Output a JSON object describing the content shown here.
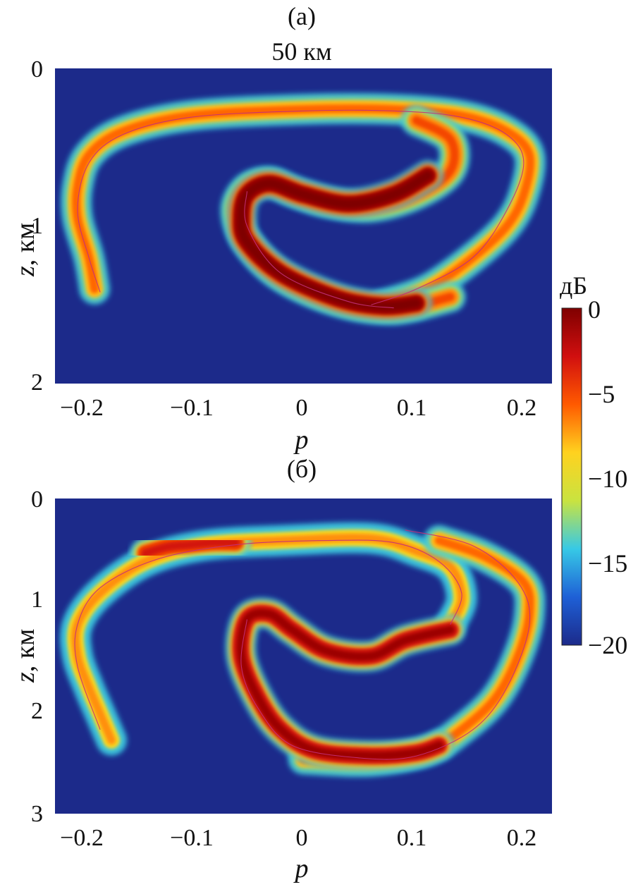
{
  "chart_data": [
    {
      "type": "heatmap",
      "panel_label": "(a)",
      "title": "50 км",
      "xlabel": "p",
      "ylabel_var": "z",
      "ylabel_unit": ", км",
      "xlim": [
        -0.22,
        0.22
      ],
      "ylim": [
        0,
        2
      ],
      "y_reversed": true,
      "xticks": [
        "−0.2",
        "−0.1",
        "0",
        "0.1",
        "0.2"
      ],
      "yticks": [
        "0",
        "1",
        "2"
      ],
      "background_color": "#1c2a8a",
      "series": [
        {
          "level_db": -8,
          "points": [
            [
              -0.185,
              1.4
            ],
            [
              -0.19,
              1.2
            ],
            [
              -0.2,
              0.95
            ],
            [
              -0.2,
              0.75
            ],
            [
              -0.19,
              0.55
            ],
            [
              -0.16,
              0.4
            ],
            [
              -0.1,
              0.3
            ],
            [
              0.0,
              0.26
            ],
            [
              0.08,
              0.26
            ],
            [
              0.14,
              0.3
            ],
            [
              0.18,
              0.4
            ],
            [
              0.2,
              0.55
            ],
            [
              0.195,
              0.8
            ],
            [
              0.18,
              1.0
            ],
            [
              0.15,
              1.2
            ],
            [
              0.11,
              1.4
            ],
            [
              0.07,
              1.5
            ]
          ]
        },
        {
          "level_db": -7,
          "points": [
            [
              0.1,
              0.33
            ],
            [
              0.13,
              0.45
            ],
            [
              0.13,
              0.65
            ],
            [
              0.1,
              0.8
            ],
            [
              0.06,
              0.88
            ],
            [
              0.02,
              0.85
            ],
            [
              -0.01,
              0.78
            ],
            [
              -0.03,
              0.72
            ],
            [
              -0.05,
              0.76
            ],
            [
              -0.06,
              0.9
            ],
            [
              -0.05,
              1.1
            ],
            [
              -0.02,
              1.32
            ],
            [
              0.03,
              1.48
            ],
            [
              0.08,
              1.53
            ],
            [
              0.13,
              1.45
            ]
          ]
        },
        {
          "level_db": -1,
          "points": [
            [
              0.11,
              0.68
            ],
            [
              0.08,
              0.8
            ],
            [
              0.04,
              0.86
            ],
            [
              0.0,
              0.8
            ],
            [
              -0.03,
              0.73
            ],
            [
              -0.05,
              0.8
            ],
            [
              -0.055,
              0.95
            ],
            [
              -0.05,
              1.1
            ],
            [
              -0.02,
              1.3
            ],
            [
              0.03,
              1.46
            ],
            [
              0.07,
              1.51
            ],
            [
              0.1,
              1.49
            ]
          ]
        }
      ],
      "contour_lines": [
        [
          [
            -0.18,
            1.42
          ],
          [
            -0.19,
            1.2
          ],
          [
            -0.2,
            0.9
          ],
          [
            -0.19,
            0.6
          ],
          [
            -0.16,
            0.42
          ],
          [
            -0.1,
            0.31
          ],
          [
            0.0,
            0.27
          ],
          [
            0.08,
            0.27
          ],
          [
            0.14,
            0.31
          ],
          [
            0.18,
            0.42
          ],
          [
            0.195,
            0.6
          ],
          [
            0.18,
            0.9
          ],
          [
            0.15,
            1.2
          ],
          [
            0.1,
            1.4
          ],
          [
            0.06,
            1.5
          ]
        ],
        [
          [
            -0.05,
            0.78
          ],
          [
            -0.05,
            1.0
          ],
          [
            -0.02,
            1.3
          ],
          [
            0.04,
            1.48
          ],
          [
            0.08,
            1.52
          ]
        ]
      ]
    },
    {
      "type": "heatmap",
      "panel_label": "(б)",
      "xlabel": "p",
      "ylabel_var": "z",
      "ylabel_unit": ", км",
      "xlim": [
        -0.22,
        0.22
      ],
      "ylim": [
        0,
        3
      ],
      "y_reversed": true,
      "xticks": [
        "−0.2",
        "−0.1",
        "0",
        "0.1",
        "0.2"
      ],
      "yticks": [
        "0",
        "1",
        "2",
        "3"
      ],
      "background_color": "#1c2a8a",
      "series": [
        {
          "level_db": -9,
          "points": [
            [
              -0.17,
              2.3
            ],
            [
              -0.18,
              2.05
            ],
            [
              -0.19,
              1.8
            ],
            [
              -0.2,
              1.5
            ],
            [
              -0.2,
              1.2
            ],
            [
              -0.18,
              0.9
            ],
            [
              -0.14,
              0.6
            ],
            [
              -0.09,
              0.45
            ],
            [
              -0.02,
              0.4
            ],
            [
              0.06,
              0.38
            ],
            [
              0.1,
              0.5
            ],
            [
              0.13,
              0.65
            ],
            [
              0.14,
              0.95
            ],
            [
              0.13,
              1.2
            ]
          ]
        },
        {
          "level_db": -8,
          "points": [
            [
              0.12,
              0.4
            ],
            [
              0.16,
              0.55
            ],
            [
              0.195,
              0.8
            ],
            [
              0.2,
              1.1
            ],
            [
              0.19,
              1.5
            ],
            [
              0.17,
              1.9
            ],
            [
              0.14,
              2.2
            ],
            [
              0.11,
              2.4
            ],
            [
              0.06,
              2.5
            ],
            [
              0.0,
              2.48
            ]
          ]
        },
        {
          "level_db": -3,
          "points": [
            [
              0.13,
              1.25
            ],
            [
              0.09,
              1.35
            ],
            [
              0.06,
              1.5
            ],
            [
              0.02,
              1.45
            ],
            [
              -0.01,
              1.25
            ],
            [
              -0.03,
              1.1
            ],
            [
              -0.05,
              1.15
            ],
            [
              -0.055,
              1.5
            ],
            [
              -0.04,
              1.9
            ],
            [
              -0.02,
              2.2
            ],
            [
              0.01,
              2.4
            ],
            [
              0.06,
              2.45
            ],
            [
              0.1,
              2.42
            ],
            [
              0.12,
              2.35
            ]
          ]
        },
        {
          "level_db": -5,
          "points": [
            [
              -0.14,
              0.52
            ],
            [
              -0.12,
              0.46
            ],
            [
              -0.1,
              0.44
            ],
            [
              -0.08,
              0.42
            ],
            [
              -0.06,
              0.42
            ]
          ]
        }
      ],
      "contour_lines": [
        [
          [
            -0.18,
            2.2
          ],
          [
            -0.2,
            1.6
          ],
          [
            -0.2,
            1.2
          ],
          [
            -0.18,
            0.85
          ],
          [
            -0.13,
            0.58
          ],
          [
            -0.06,
            0.44
          ],
          [
            0.02,
            0.4
          ],
          [
            0.08,
            0.42
          ],
          [
            0.12,
            0.6
          ],
          [
            0.14,
            0.9
          ],
          [
            0.13,
            1.2
          ]
        ],
        [
          [
            -0.05,
            1.15
          ],
          [
            -0.055,
            1.6
          ],
          [
            -0.04,
            2.0
          ],
          [
            -0.01,
            2.35
          ],
          [
            0.05,
            2.47
          ],
          [
            0.1,
            2.45
          ],
          [
            0.15,
            2.2
          ],
          [
            0.18,
            1.8
          ],
          [
            0.2,
            1.2
          ],
          [
            0.19,
            0.8
          ],
          [
            0.15,
            0.45
          ],
          [
            0.09,
            0.3
          ]
        ]
      ]
    },
    {
      "type": "colorbar",
      "label": "дБ",
      "range": [
        -20,
        0
      ],
      "ticks": [
        "0",
        "−5",
        "−10",
        "−15",
        "−20"
      ],
      "colors": [
        "#7f0000",
        "#d10f0f",
        "#ff5a00",
        "#ffd21f",
        "#c9e340",
        "#37c9e6",
        "#1e60d6",
        "#1c2a8a"
      ]
    }
  ]
}
